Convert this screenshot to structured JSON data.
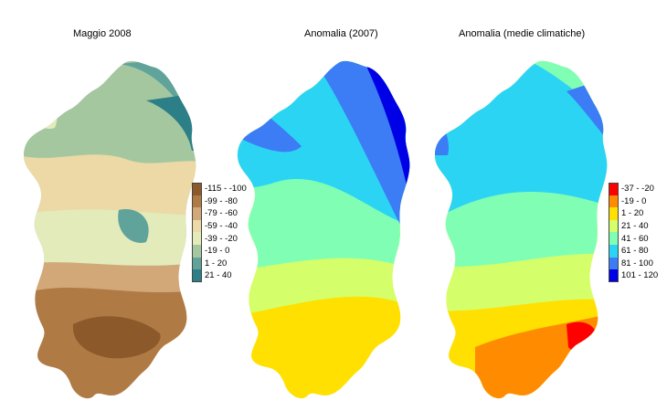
{
  "maps": [
    {
      "title": "Maggio 2008",
      "legend": [
        {
          "label": "-115 - -100",
          "color": "#8c5a2a"
        },
        {
          "label": "-99 - -80",
          "color": "#b07a45"
        },
        {
          "label": "-79 - -60",
          "color": "#d3a878"
        },
        {
          "label": "-59 - -40",
          "color": "#ecd9a6"
        },
        {
          "label": "-39 - -20",
          "color": "#e3ebbb"
        },
        {
          "label": "-19 - 0",
          "color": "#a5c7a0"
        },
        {
          "label": "1 - 20",
          "color": "#5fa39a"
        },
        {
          "label": "21 - 40",
          "color": "#2c7f86"
        }
      ]
    },
    {
      "title": "Anomalia (2007)",
      "legend": []
    },
    {
      "title": "Anomalia (medie climatiche)",
      "legend": [
        {
          "label": "-37 - -20",
          "color": "#ff0000"
        },
        {
          "label": "-19 - 0",
          "color": "#ff8c00"
        },
        {
          "label": "1 - 20",
          "color": "#ffe000"
        },
        {
          "label": "21 - 40",
          "color": "#d4ff6a"
        },
        {
          "label": "41 - 60",
          "color": "#80ffb4"
        },
        {
          "label": "61 - 80",
          "color": "#2cd4f4"
        },
        {
          "label": "81 - 100",
          "color": "#3c7cf4"
        },
        {
          "label": "101 - 120",
          "color": "#0000e6"
        }
      ]
    }
  ]
}
